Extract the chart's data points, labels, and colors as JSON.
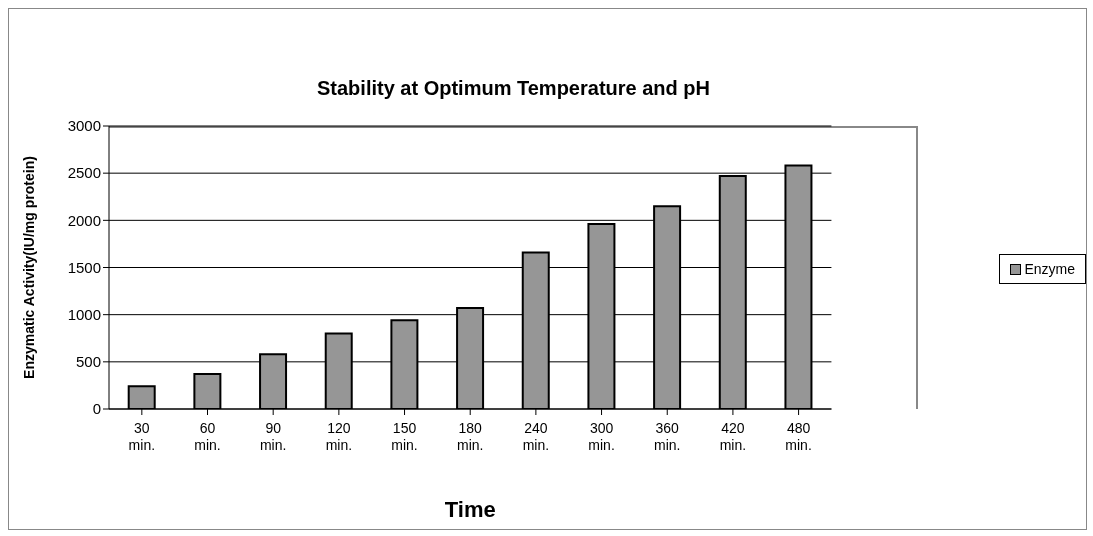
{
  "chart_data": {
    "type": "bar",
    "title": "Stability at Optimum Temperature and pH",
    "xlabel": "Time",
    "ylabel": "Enzymatic Activity(IU/mg protein)",
    "categories": [
      "30 min.",
      "60 min.",
      "90 min.",
      "120 min.",
      "150 min.",
      "180 min.",
      "240 min.",
      "300 min.",
      "360 min.",
      "420 min.",
      "480 min."
    ],
    "series": [
      {
        "name": "Enzyme",
        "color": "#969696",
        "values": [
          240,
          370,
          580,
          800,
          940,
          1070,
          1660,
          1960,
          2150,
          2470,
          2580
        ]
      }
    ],
    "ylim": [
      0,
      3000
    ],
    "yticks": [
      0,
      500,
      1000,
      1500,
      2000,
      2500,
      3000
    ],
    "grid": "y",
    "legend": "right"
  }
}
